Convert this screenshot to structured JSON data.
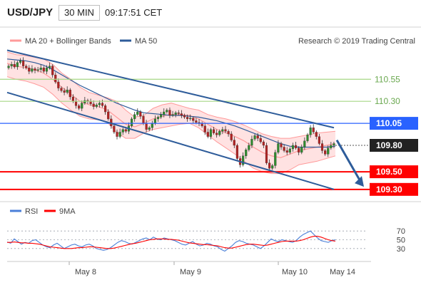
{
  "header": {
    "symbol": "USD/JPY",
    "timeframe": "30 MIN",
    "time": "09:17:51 CET"
  },
  "legend": {
    "bollinger_label": "MA 20 + Bollinger Bands",
    "ma50_label": "MA 50",
    "copyright": "Research © 2019 Trading Central",
    "rsi_label": "RSI",
    "ma9_label": "9MA"
  },
  "colors": {
    "bollinger": "#ff9a9a",
    "band_fill": "#ffe2e2",
    "ma50": "#2e5c9a",
    "channel": "#2e5c9a",
    "support": "#ff0000",
    "resistance_green": "#a6d785",
    "pivot_blue": "#2962ff",
    "current_price_tag": "#222222",
    "candle_up": "#2e8b2e",
    "candle_down": "#b22222",
    "rsi_line": "#4a7fd8",
    "rsi_ma": "#ff0000"
  },
  "chart_data": [
    {
      "type": "candlestick",
      "title": "USD/JPY 30 MIN",
      "x_labels": [
        "May 8",
        "May 9",
        "May 10",
        "May 14"
      ],
      "ylim": [
        109.25,
        110.9
      ],
      "levels": [
        {
          "value": 110.55,
          "label": "110.55",
          "kind": "resistance"
        },
        {
          "value": 110.3,
          "label": "110.30",
          "kind": "resistance"
        },
        {
          "value": 110.05,
          "label": "110.05",
          "kind": "pivot"
        },
        {
          "value": 109.8,
          "label": "109.80",
          "kind": "current"
        },
        {
          "value": 109.5,
          "label": "109.50",
          "kind": "support"
        },
        {
          "value": 109.3,
          "label": "109.30",
          "kind": "support"
        }
      ],
      "channel": {
        "upper": [
          [
            0,
            110.88
          ],
          [
            95,
            110.0
          ]
        ],
        "lower": [
          [
            0,
            110.4
          ],
          [
            95,
            109.3
          ]
        ]
      },
      "forecast_arrow": {
        "from": 109.86,
        "to": 109.33
      },
      "closes": [
        110.7,
        110.72,
        110.69,
        110.74,
        110.76,
        110.7,
        110.68,
        110.64,
        110.67,
        110.65,
        110.66,
        110.68,
        110.64,
        110.68,
        110.7,
        110.6,
        110.52,
        110.45,
        110.42,
        110.4,
        110.43,
        110.35,
        110.3,
        110.25,
        110.22,
        110.28,
        110.31,
        110.3,
        110.27,
        110.24,
        110.26,
        110.28,
        110.25,
        110.18,
        110.1,
        110.02,
        109.95,
        109.9,
        109.95,
        109.98,
        109.96,
        110.02,
        110.1,
        110.15,
        110.18,
        110.13,
        110.05,
        109.98,
        110.0,
        110.05,
        110.1,
        110.12,
        110.15,
        110.18,
        110.2,
        110.14,
        110.15,
        110.17,
        110.16,
        110.14,
        110.12,
        110.1,
        110.11,
        110.08,
        110.06,
        110.05,
        110.02,
        109.95,
        109.9,
        109.98,
        109.94,
        109.92,
        109.96,
        109.98,
        109.96,
        109.93,
        109.86,
        109.8,
        109.65,
        109.58,
        109.68,
        109.75,
        109.8,
        109.87,
        109.91,
        109.88,
        109.84,
        109.8,
        109.6,
        109.54,
        109.57,
        109.72,
        109.82,
        109.78,
        109.74,
        109.72,
        109.76,
        109.8,
        109.77,
        109.72,
        109.78,
        109.85,
        109.92,
        110.0,
        109.95,
        109.9,
        109.82,
        109.74,
        109.7,
        109.77,
        109.8,
        109.82
      ],
      "bollinger": {
        "middle": [
          110.73,
          110.7,
          110.68,
          110.66,
          110.62,
          110.55,
          110.46,
          110.38,
          110.3,
          110.26,
          110.24,
          110.2,
          110.12,
          110.04,
          110.01,
          110.05,
          110.1,
          110.13,
          110.15,
          110.15,
          110.14,
          110.1,
          110.04,
          109.98,
          109.94,
          109.9,
          109.85,
          109.78,
          109.72,
          109.68,
          109.66,
          109.7,
          109.74,
          109.76,
          109.78,
          109.8,
          109.82
        ],
        "upper": [
          110.86,
          110.83,
          110.82,
          110.8,
          110.78,
          110.72,
          110.62,
          110.55,
          110.46,
          110.4,
          110.37,
          110.34,
          110.3,
          110.2,
          110.12,
          110.14,
          110.22,
          110.26,
          110.28,
          110.25,
          110.22,
          110.2,
          110.15,
          110.12,
          110.1,
          110.07,
          110.03,
          109.98,
          109.93,
          109.9,
          109.88,
          109.88,
          109.9,
          109.92,
          109.94,
          109.95,
          109.96
        ],
        "lower": [
          110.58,
          110.55,
          110.53,
          110.5,
          110.46,
          110.38,
          110.28,
          110.2,
          110.13,
          110.1,
          110.09,
          110.06,
          109.95,
          109.88,
          109.88,
          109.94,
          109.98,
          110.0,
          110.02,
          110.04,
          110.05,
          110.0,
          109.92,
          109.84,
          109.77,
          109.7,
          109.62,
          109.54,
          109.5,
          109.48,
          109.48,
          109.52,
          109.58,
          109.6,
          109.62,
          109.65,
          109.68
        ]
      },
      "ma50": [
        110.78,
        110.77,
        110.76,
        110.74,
        110.71,
        110.66,
        110.6,
        110.54,
        110.48,
        110.43,
        110.38,
        110.33,
        110.28,
        110.24,
        110.2,
        110.17,
        110.16,
        110.15,
        110.14,
        110.14,
        110.13,
        110.12,
        110.1,
        110.08,
        110.05,
        110.02,
        109.98,
        109.94,
        109.9,
        109.86,
        109.82,
        109.79,
        109.78,
        109.78,
        109.78,
        109.78,
        109.79
      ]
    },
    {
      "type": "line",
      "title": "RSI",
      "ylim": [
        20,
        80
      ],
      "ticks": [
        70,
        50,
        30
      ],
      "series": [
        {
          "name": "RSI",
          "values": [
            45,
            42,
            52,
            46,
            40,
            44,
            42,
            48,
            50,
            44,
            38,
            34,
            32,
            38,
            42,
            36,
            30,
            34,
            38,
            40,
            36,
            34,
            38,
            40,
            36,
            30,
            28,
            26,
            28,
            32,
            38,
            44,
            48,
            46,
            42,
            40,
            44,
            48,
            52,
            54,
            50,
            56,
            52,
            50,
            54,
            52,
            50,
            48,
            44,
            40,
            38,
            42,
            46,
            40,
            36,
            38,
            42,
            40,
            36,
            34,
            28,
            24,
            30,
            36,
            44,
            48,
            46,
            42,
            40,
            38,
            34,
            30,
            36,
            44,
            52,
            48,
            46,
            50,
            48,
            46,
            44,
            48,
            56,
            62,
            66,
            70,
            62,
            54,
            48,
            46,
            44,
            48,
            50
          ]
        },
        {
          "name": "9MA",
          "values": [
            44,
            44,
            45,
            44,
            43,
            43,
            42,
            42,
            41,
            40,
            38,
            36,
            34,
            33,
            32,
            31,
            30,
            30,
            30,
            31,
            32,
            32,
            33,
            34,
            34,
            33,
            32,
            31,
            30,
            30,
            31,
            33,
            35,
            37,
            39,
            41,
            42,
            44,
            46,
            48,
            50,
            51,
            52,
            52,
            52,
            51,
            51,
            50,
            49,
            47,
            45,
            43,
            42,
            41,
            40,
            39,
            39,
            38,
            37,
            36,
            34,
            32,
            31,
            31,
            33,
            35,
            37,
            39,
            40,
            40,
            39,
            38,
            37,
            38,
            40,
            42,
            44,
            46,
            47,
            47,
            47,
            47,
            48,
            50,
            53,
            56,
            58,
            58,
            56,
            53,
            50,
            48,
            47
          ]
        }
      ]
    }
  ]
}
